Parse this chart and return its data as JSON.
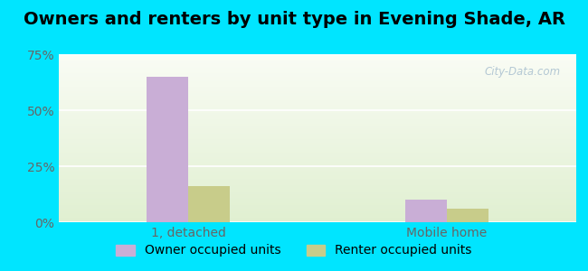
{
  "title": "Owners and renters by unit type in Evening Shade, AR",
  "categories": [
    "1, detached",
    "Mobile home"
  ],
  "owner_values": [
    65.0,
    10.0
  ],
  "renter_values": [
    16.0,
    6.0
  ],
  "owner_color": "#c9aed6",
  "renter_color": "#c8cc8a",
  "ylim": [
    0,
    75
  ],
  "yticks": [
    0,
    25,
    50,
    75
  ],
  "ytick_labels": [
    "0%",
    "25%",
    "50%",
    "75%"
  ],
  "bar_width": 0.32,
  "outer_color": "#00e5ff",
  "watermark": "City-Data.com",
  "legend_labels": [
    "Owner occupied units",
    "Renter occupied units"
  ],
  "title_fontsize": 14,
  "tick_fontsize": 10,
  "legend_fontsize": 10,
  "x_positions": [
    1.0,
    3.0
  ],
  "xlim": [
    0,
    4
  ]
}
